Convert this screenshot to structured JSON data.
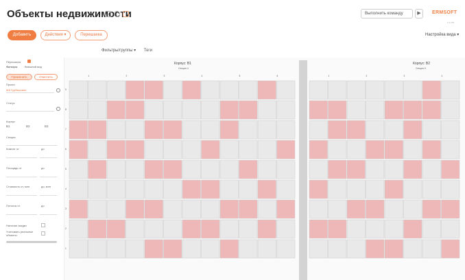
{
  "header": {
    "title": "Объекты недвижимости",
    "command_placeholder": "Выполнить команду",
    "logo": "ERMSOFT",
    "logo_sub": "1.0.278"
  },
  "actions": {
    "add": "Добавить",
    "actions": "Действия ▾",
    "swap": "Перешахка",
    "view_settings": "Настройка вида ▾"
  },
  "toolbar": {
    "filters": "Фильтры/группы ▾",
    "tags": "Теги"
  },
  "sidebar": {
    "chess_label": "Перешахка",
    "tabs": [
      "Фильтры",
      "Внешний вид"
    ],
    "project_label": "Проект",
    "project_value": "ЖК Гурбюрсинн",
    "status_label": "Статус",
    "corpus_label": "Корпус",
    "corpus_items": [
      "В1",
      "В2",
      "В3"
    ],
    "section_label": "Секция",
    "floor_label": "Комнат от",
    "to": "до",
    "area_label": "Площадь от",
    "price_label": "Стоимость от, млн",
    "price_to": "до, млн",
    "floors_label": "Потолок от",
    "remote_label": "Наличие скидки",
    "hide_label": "Учитывать реальные объекты",
    "apply": "Применить",
    "clear": "Очистить"
  },
  "grid": {
    "corpus_a": "Корпус: В1",
    "section_a": "Секция 4",
    "corpus_b": "Корпус: В2",
    "section_b": "Секция 5",
    "floors": [
      "9",
      "8",
      "7",
      "6",
      "5",
      "4",
      "3",
      "2",
      "1"
    ],
    "cols_a": [
      "1",
      "2",
      "3",
      "4",
      "5",
      "6"
    ],
    "cols_b": [
      "1",
      "2",
      "3",
      "4"
    ]
  },
  "colors": {
    "accent": "#f07d42",
    "sold": "#efb8b8",
    "free": "#e9e9e9",
    "border": "#c8c8c8"
  }
}
